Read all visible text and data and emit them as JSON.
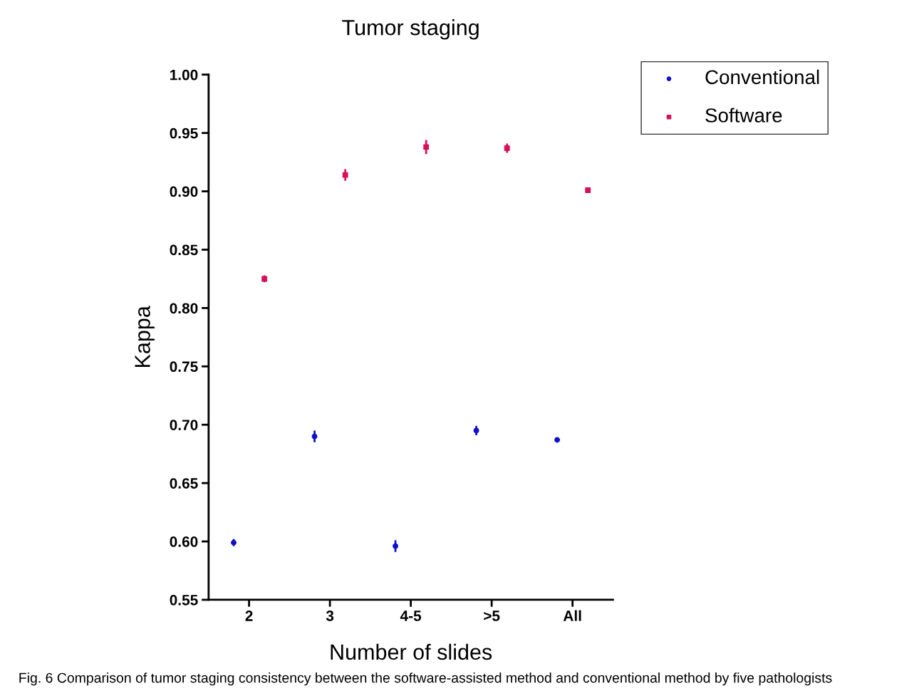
{
  "chart_data": {
    "type": "scatter",
    "title": "Tumor staging",
    "xlabel": "Number of slides",
    "ylabel": "Kappa",
    "categories": [
      "2",
      "3",
      "4-5",
      ">5",
      "All"
    ],
    "series": [
      {
        "name": "Conventional",
        "color": "#1010c8",
        "marker": "circle",
        "values": [
          0.599,
          0.69,
          0.596,
          0.695,
          0.687
        ],
        "errors": [
          0.003,
          0.005,
          0.005,
          0.004,
          null
        ]
      },
      {
        "name": "Software",
        "color": "#d6105a",
        "marker": "square",
        "values": [
          0.825,
          0.914,
          0.938,
          0.937,
          0.901
        ],
        "errors": [
          0.003,
          0.005,
          0.006,
          0.004,
          null
        ]
      }
    ],
    "ylim": [
      0.55,
      1.0
    ],
    "yticks": [
      0.55,
      {
        "value": 0.6,
        "label": "0.60"
      },
      0.65,
      {
        "value": 0.7,
        "label": "0.70"
      },
      0.75,
      {
        "value": 0.8,
        "label": "0.80"
      },
      0.85,
      {
        "value": 0.9,
        "label": "0.90"
      },
      0.95,
      {
        "value": 1.0,
        "label": "1.00"
      }
    ],
    "grid": false,
    "legend": "top right",
    "annotations": [
      "Fig. 6 Comparison of tumor staging consistency between the software-assisted method and conventional method by five pathologists"
    ]
  }
}
